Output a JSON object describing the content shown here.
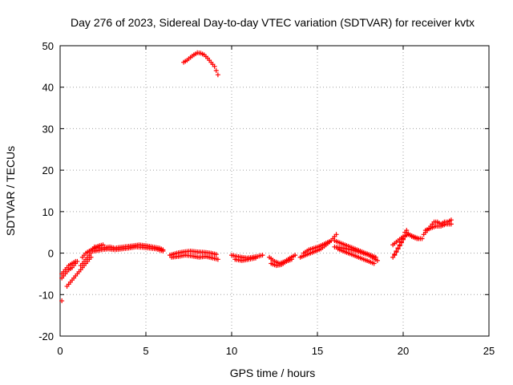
{
  "chart_data": {
    "type": "scatter",
    "title": "Day 276 of 2023, Sidereal Day-to-day VTEC variation (SDTVAR) for receiver kvtx",
    "xlabel": "GPS time / hours",
    "ylabel": "SDTVAR / TECUs",
    "xlim": [
      0,
      25
    ],
    "ylim": [
      -20,
      50
    ],
    "grid": true,
    "xticks": [
      0,
      5,
      10,
      15,
      20,
      25
    ],
    "yticks": [
      -20,
      -10,
      0,
      10,
      20,
      30,
      40,
      50
    ],
    "marker": "plus",
    "series": [
      {
        "name": "SDTVAR",
        "color": "#ff0000",
        "segments": [
          [
            [
              0.1,
              -11.5
            ]
          ],
          [
            [
              0.1,
              -6
            ],
            [
              0.3,
              -5
            ],
            [
              0.5,
              -4
            ],
            [
              0.7,
              -3.5
            ],
            [
              0.9,
              -2.5
            ],
            [
              1.0,
              -2
            ]
          ],
          [
            [
              0.1,
              -5
            ],
            [
              0.3,
              -4
            ],
            [
              0.5,
              -3
            ],
            [
              0.7,
              -2.5
            ],
            [
              0.9,
              -2
            ]
          ],
          [
            [
              0.4,
              -8
            ],
            [
              0.6,
              -7
            ],
            [
              0.8,
              -6
            ],
            [
              1.0,
              -5
            ],
            [
              1.2,
              -4
            ],
            [
              1.4,
              -3
            ],
            [
              1.6,
              -2
            ],
            [
              1.8,
              -1
            ]
          ],
          [
            [
              1.2,
              -3
            ],
            [
              1.4,
              -2
            ],
            [
              1.6,
              -1
            ],
            [
              1.8,
              0
            ],
            [
              2.0,
              1
            ]
          ],
          [
            [
              1.3,
              -1
            ],
            [
              1.5,
              0
            ],
            [
              1.7,
              0.5
            ],
            [
              1.9,
              1
            ],
            [
              2.1,
              1.5
            ],
            [
              2.3,
              1.8
            ],
            [
              2.5,
              2
            ]
          ],
          [
            [
              2.0,
              1.5
            ],
            [
              2.3,
              1.2
            ],
            [
              2.6,
              1.3
            ],
            [
              2.9,
              1.5
            ],
            [
              3.2,
              1.2
            ],
            [
              3.5,
              1.4
            ],
            [
              3.9,
              1.6
            ],
            [
              4.3,
              1.8
            ],
            [
              4.6,
              2
            ],
            [
              5.0,
              1.8
            ],
            [
              5.4,
              1.5
            ],
            [
              5.8,
              1.2
            ],
            [
              6.0,
              0.8
            ]
          ],
          [
            [
              2.0,
              0.5
            ],
            [
              2.4,
              0.8
            ],
            [
              2.8,
              1
            ],
            [
              3.2,
              0.8
            ],
            [
              3.6,
              1
            ],
            [
              4.0,
              1.2
            ],
            [
              4.4,
              1.5
            ],
            [
              4.8,
              1.4
            ],
            [
              5.2,
              1.2
            ],
            [
              5.6,
              1
            ],
            [
              6.0,
              0.5
            ]
          ],
          [
            [
              6.4,
              -0.5
            ],
            [
              6.8,
              0
            ],
            [
              7.2,
              0.3
            ],
            [
              7.6,
              0.5
            ],
            [
              8.0,
              0.3
            ],
            [
              8.4,
              0.2
            ],
            [
              8.8,
              0
            ],
            [
              9.1,
              -0.3
            ]
          ],
          [
            [
              6.5,
              -1
            ],
            [
              6.9,
              -0.8
            ],
            [
              7.3,
              -0.5
            ],
            [
              7.7,
              -0.7
            ],
            [
              8.1,
              -1
            ],
            [
              8.5,
              -0.8
            ],
            [
              8.9,
              -1.2
            ],
            [
              9.2,
              -1.5
            ]
          ],
          [
            [
              10.0,
              -0.5
            ],
            [
              10.3,
              -0.8
            ],
            [
              10.6,
              -1
            ],
            [
              10.9,
              -1.2
            ],
            [
              11.2,
              -1
            ],
            [
              11.5,
              -0.8
            ],
            [
              11.8,
              -0.5
            ]
          ],
          [
            [
              10.2,
              -1.5
            ],
            [
              10.6,
              -1.8
            ],
            [
              11.0,
              -1.5
            ],
            [
              11.4,
              -1.2
            ]
          ],
          [
            [
              12.2,
              -1
            ],
            [
              12.5,
              -2
            ],
            [
              12.8,
              -2.5
            ],
            [
              13.1,
              -2
            ],
            [
              13.4,
              -1.2
            ],
            [
              13.7,
              -0.5
            ]
          ],
          [
            [
              12.3,
              -2.5
            ],
            [
              12.6,
              -3
            ],
            [
              12.9,
              -2.8
            ],
            [
              13.2,
              -2
            ],
            [
              13.5,
              -1.5
            ]
          ],
          [
            [
              14.0,
              -1
            ],
            [
              14.3,
              -0.5
            ],
            [
              14.6,
              0
            ],
            [
              14.9,
              0.5
            ],
            [
              15.2,
              1
            ],
            [
              15.5,
              2
            ],
            [
              15.8,
              3
            ],
            [
              16.0,
              4
            ],
            [
              16.1,
              4.5
            ]
          ],
          [
            [
              14.2,
              0
            ],
            [
              14.5,
              0.8
            ],
            [
              14.8,
              1.2
            ],
            [
              15.1,
              1.6
            ],
            [
              15.4,
              2.2
            ],
            [
              15.7,
              2.8
            ]
          ],
          [
            [
              16.0,
              3
            ],
            [
              16.3,
              2.5
            ],
            [
              16.6,
              2
            ],
            [
              16.9,
              1.5
            ],
            [
              17.2,
              1
            ],
            [
              17.5,
              0.5
            ],
            [
              17.8,
              0
            ],
            [
              18.1,
              -0.5
            ],
            [
              18.4,
              -1
            ]
          ],
          [
            [
              16.2,
              1
            ],
            [
              16.5,
              0.5
            ],
            [
              16.8,
              0
            ],
            [
              17.1,
              -0.5
            ],
            [
              17.4,
              -1
            ],
            [
              17.7,
              -1.5
            ],
            [
              18.0,
              -2
            ],
            [
              18.3,
              -2.5
            ]
          ],
          [
            [
              16.0,
              1.5
            ],
            [
              16.5,
              1.2
            ],
            [
              17.0,
              0.8
            ],
            [
              17.5,
              0.2
            ],
            [
              18.0,
              -0.5
            ],
            [
              18.5,
              -1.8
            ]
          ],
          [
            [
              19.4,
              -1
            ],
            [
              19.6,
              0.5
            ],
            [
              19.8,
              2
            ],
            [
              20.0,
              3.5
            ],
            [
              20.1,
              5
            ]
          ],
          [
            [
              19.5,
              -0.5
            ],
            [
              19.7,
              1
            ],
            [
              19.9,
              2.5
            ],
            [
              20.1,
              4
            ],
            [
              20.2,
              5.5
            ]
          ],
          [
            [
              19.4,
              2
            ],
            [
              19.7,
              3
            ],
            [
              20.0,
              4
            ],
            [
              20.3,
              4.5
            ],
            [
              20.6,
              4
            ],
            [
              20.9,
              3.5
            ]
          ],
          [
            [
              20.2,
              5
            ],
            [
              20.5,
              4
            ],
            [
              20.8,
              3.5
            ],
            [
              21.1,
              3.5
            ]
          ],
          [
            [
              21.2,
              4.5
            ],
            [
              21.4,
              5.5
            ],
            [
              21.6,
              6.5
            ],
            [
              21.8,
              7.5
            ],
            [
              22.0,
              7.5
            ],
            [
              22.2,
              7
            ],
            [
              22.4,
              7.5
            ],
            [
              22.6,
              7.5
            ],
            [
              22.8,
              8
            ]
          ],
          [
            [
              21.3,
              5.5
            ],
            [
              21.6,
              6
            ],
            [
              21.9,
              6.5
            ],
            [
              22.2,
              6.5
            ],
            [
              22.5,
              7
            ],
            [
              22.8,
              7
            ]
          ],
          [
            [
              7.2,
              46
            ],
            [
              7.4,
              46.5
            ],
            [
              7.6,
              47.2
            ],
            [
              7.8,
              47.8
            ],
            [
              8.0,
              48.3
            ],
            [
              8.2,
              48.2
            ],
            [
              8.4,
              47.8
            ],
            [
              8.6,
              47
            ],
            [
              8.8,
              46
            ],
            [
              9.0,
              45
            ],
            [
              9.1,
              44
            ],
            [
              9.2,
              43
            ]
          ]
        ]
      }
    ]
  }
}
